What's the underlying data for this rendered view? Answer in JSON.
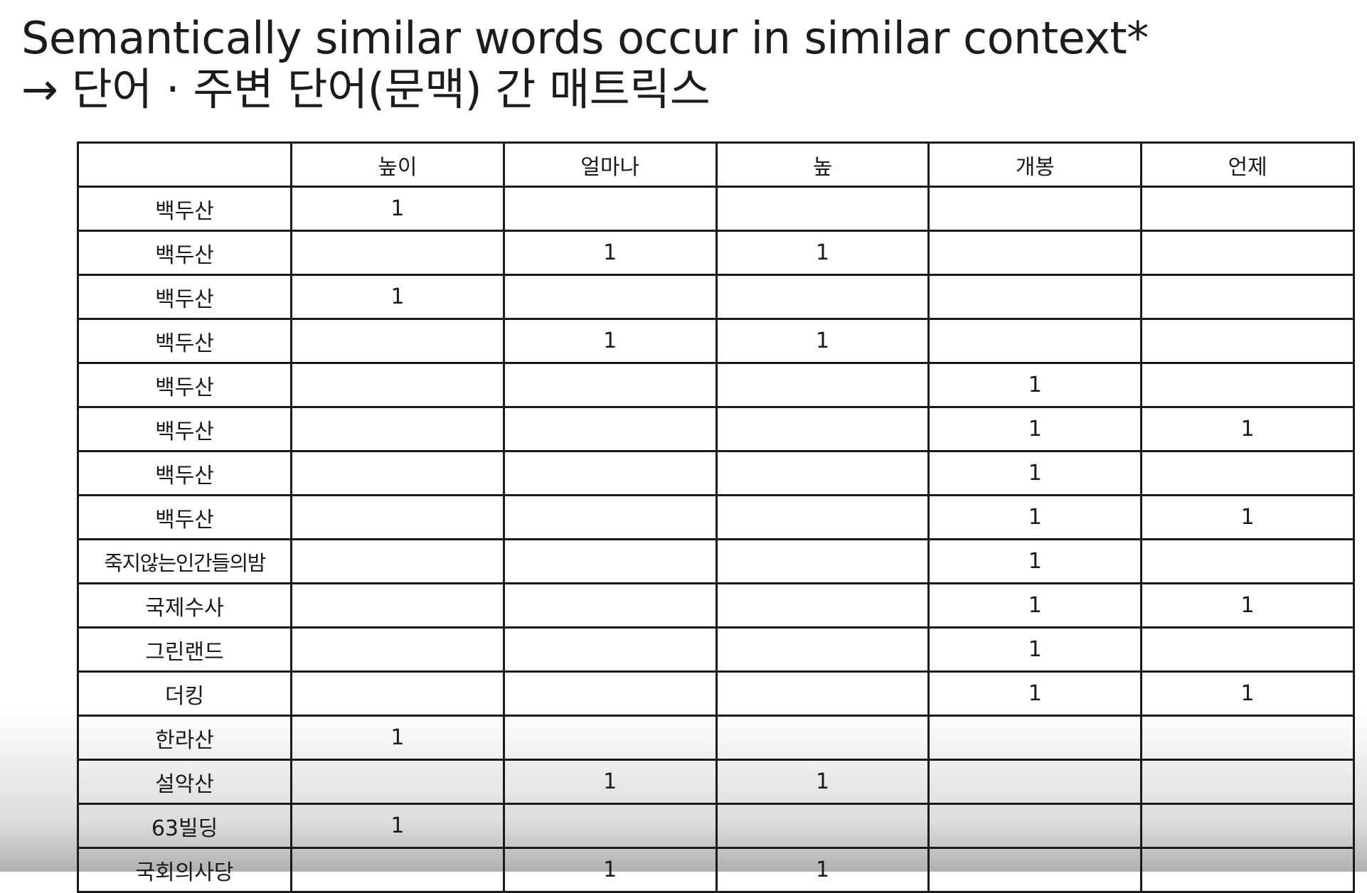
{
  "title": {
    "line1": "Semantically similar words occur in similar context*",
    "line2": "→ 단어 · 주변 단어(문맥) 간 매트릭스"
  },
  "table": {
    "corner": "",
    "columns": [
      "높이",
      "얼마나",
      "높",
      "개봉",
      "언제"
    ],
    "rows": [
      {
        "label": "백두산",
        "cells": [
          "1",
          "",
          "",
          "",
          ""
        ]
      },
      {
        "label": "백두산",
        "cells": [
          "",
          "1",
          "1",
          "",
          ""
        ]
      },
      {
        "label": "백두산",
        "cells": [
          "1",
          "",
          "",
          "",
          ""
        ]
      },
      {
        "label": "백두산",
        "cells": [
          "",
          "1",
          "1",
          "",
          ""
        ]
      },
      {
        "label": "백두산",
        "cells": [
          "",
          "",
          "",
          "1",
          ""
        ]
      },
      {
        "label": "백두산",
        "cells": [
          "",
          "",
          "",
          "1",
          "1"
        ]
      },
      {
        "label": "백두산",
        "cells": [
          "",
          "",
          "",
          "1",
          ""
        ]
      },
      {
        "label": "백두산",
        "cells": [
          "",
          "",
          "",
          "1",
          "1"
        ]
      },
      {
        "label": "죽지않는인간들의밤",
        "cells": [
          "",
          "",
          "",
          "1",
          ""
        ]
      },
      {
        "label": "국제수사",
        "cells": [
          "",
          "",
          "",
          "1",
          "1"
        ]
      },
      {
        "label": "그린랜드",
        "cells": [
          "",
          "",
          "",
          "1",
          ""
        ]
      },
      {
        "label": "더킹",
        "cells": [
          "",
          "",
          "",
          "1",
          "1"
        ]
      },
      {
        "label": "한라산",
        "cells": [
          "1",
          "",
          "",
          "",
          ""
        ]
      },
      {
        "label": "설악산",
        "cells": [
          "",
          "1",
          "1",
          "",
          ""
        ]
      },
      {
        "label": "63빌딩",
        "cells": [
          "1",
          "",
          "",
          "",
          ""
        ]
      },
      {
        "label": "국회의사당",
        "cells": [
          "",
          "1",
          "1",
          "",
          ""
        ]
      }
    ]
  }
}
